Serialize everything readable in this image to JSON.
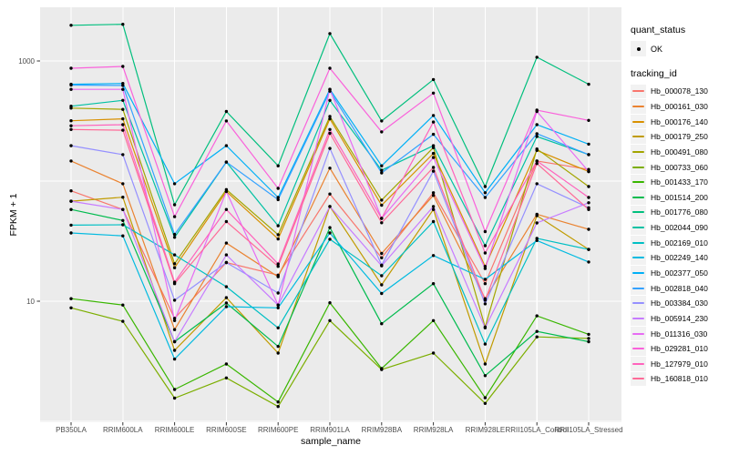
{
  "chart_data": {
    "type": "line",
    "xlabel": "sample_name",
    "ylabel": "FPKM + 1",
    "y_scale": "log10",
    "y_major_ticks": [
      {
        "value": 1000,
        "label": "1000"
      },
      {
        "value": 10,
        "label": "10"
      }
    ],
    "y_minor_breaks": [
      100,
      1
    ],
    "grid": true,
    "legend_position": "right",
    "legend_quant": {
      "title": "quant_status",
      "items": [
        {
          "label": "OK",
          "marker": "point"
        }
      ]
    },
    "legend_tracking_title": "tracking_id",
    "point_color": "#000000",
    "colors": {
      "panel_bg": "#EBEBEB",
      "grid": "#FFFFFF",
      "legend_key_bg": "#F2F2F2",
      "axis_text": "#4D4D4D",
      "tick_mark": "#333333"
    },
    "categories": [
      "PB350LA",
      "RRIM600LA",
      "RRIM600LE",
      "RRIM600SE",
      "RRIM600PE",
      "RRIM901LA",
      "RRIM928BA",
      "RRIM928LA",
      "RRIM928LE",
      "RRII105LA_Control",
      "RRII105LA_Stressed"
    ],
    "series": [
      {
        "name": "Hb_000078_130",
        "color": "#F8766D",
        "values": [
          83,
          58,
          7.2,
          21,
          16.5,
          78,
          23,
          80,
          14,
          147,
          125
        ]
      },
      {
        "name": "Hb_000161_030",
        "color": "#EA8331",
        "values": [
          147,
          95,
          5.8,
          30.5,
          16,
          128,
          25,
          76,
          10.5,
          53,
          39.7
        ]
      },
      {
        "name": "Hb_000176_140",
        "color": "#D89000",
        "values": [
          318,
          330,
          19,
          82,
          33,
          330,
          63,
          170,
          19.5,
          180,
          120
        ]
      },
      {
        "name": "Hb_000179_250",
        "color": "#C09B00",
        "values": [
          68,
          73.5,
          3.9,
          10.7,
          3.7,
          61.5,
          13.7,
          58,
          3.0,
          51.5,
          27
        ]
      },
      {
        "name": "Hb_000491_080",
        "color": "#A3A500",
        "values": [
          405,
          395,
          20.5,
          85,
          35.8,
          345,
          69.5,
          190,
          6.1,
          185,
          90
        ]
      },
      {
        "name": "Hb_000733_060",
        "color": "#7CAE00",
        "values": [
          8.8,
          6.8,
          1.56,
          2.3,
          1.33,
          6.9,
          2.7,
          3.7,
          1.41,
          5.05,
          4.9
        ]
      },
      {
        "name": "Hb_001433_170",
        "color": "#39B600",
        "values": [
          10.5,
          9.3,
          1.84,
          3.0,
          1.45,
          9.7,
          2.75,
          6.9,
          1.57,
          7.55,
          5.3
        ]
      },
      {
        "name": "Hb_001514_200",
        "color": "#00BB4E",
        "values": [
          58,
          47,
          4.6,
          9.65,
          4.2,
          41,
          6.5,
          14,
          2.4,
          5.6,
          4.6
        ]
      },
      {
        "name": "Hb_001776_080",
        "color": "#00BF7D",
        "values": [
          1980,
          2020,
          63.5,
          380,
          134,
          1690,
          317,
          700,
          90,
          1075,
          640
        ]
      },
      {
        "name": "Hb_002044_090",
        "color": "#00C1A3",
        "values": [
          420,
          470,
          34,
          144,
          42.5,
          470,
          123,
          197,
          29,
          235,
          166
        ]
      },
      {
        "name": "Hb_002169_010",
        "color": "#00BFC4",
        "values": [
          43,
          43.3,
          24.3,
          13.2,
          6.0,
          32.8,
          16.3,
          46,
          4.4,
          33.4,
          27
        ]
      },
      {
        "name": "Hb_002249_140",
        "color": "#00BAE0",
        "values": [
          37,
          35,
          3.3,
          9.0,
          8.8,
          37,
          11.6,
          24,
          15.2,
          32,
          21.2
        ]
      },
      {
        "name": "Hb_002377_050",
        "color": "#00B0F6",
        "values": [
          640,
          650,
          95,
          197,
          73,
          580,
          134,
          352,
          80,
          295,
          203
        ]
      },
      {
        "name": "Hb_002818_040",
        "color": "#35A2FF",
        "values": [
          630,
          625,
          36,
          144,
          70,
          560,
          117,
          245,
          73,
          248,
          166
        ]
      },
      {
        "name": "Hb_003384_030",
        "color": "#9590FF",
        "values": [
          197,
          166,
          10.2,
          21,
          11.7,
          187,
          20,
          121,
          9.5,
          95,
          60
        ]
      },
      {
        "name": "Hb_005914_230",
        "color": "#C77CFF",
        "values": [
          68,
          58,
          4.6,
          24.3,
          9.3,
          61.5,
          19.7,
          61.5,
          6.0,
          44.8,
          66
        ]
      },
      {
        "name": "Hb_011316_030",
        "color": "#E76BF3",
        "values": [
          580,
          580,
          6.9,
          82,
          9.3,
          580,
          48.9,
          157,
          18.7,
          380,
          120
        ]
      },
      {
        "name": "Hb_029281_010",
        "color": "#FA62DB",
        "values": [
          870,
          900,
          50.6,
          317,
          87,
          870,
          257,
          540,
          38,
          390,
          320
        ]
      },
      {
        "name": "Hb_127979_010",
        "color": "#FF62BC",
        "values": [
          289,
          295,
          14.4,
          58,
          20.4,
          269,
          48.9,
          310,
          25.2,
          147,
          73
        ]
      },
      {
        "name": "Hb_160818_010",
        "color": "#FF6A98",
        "values": [
          269,
          265,
          14,
          46,
          19.5,
          250,
          45,
          130,
          10.2,
          140,
          58
        ]
      }
    ]
  }
}
